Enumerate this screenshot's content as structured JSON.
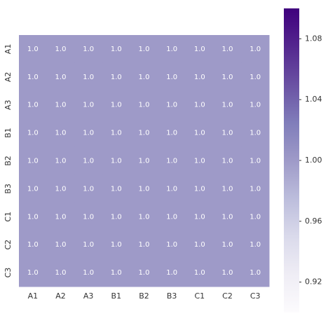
{
  "chart_data": {
    "type": "heatmap",
    "x": [
      "A1",
      "A2",
      "A3",
      "B1",
      "B2",
      "B3",
      "C1",
      "C2",
      "C3"
    ],
    "y": [
      "A1",
      "A2",
      "A3",
      "B1",
      "B2",
      "B3",
      "C1",
      "C2",
      "C3"
    ],
    "values": [
      [
        1.0,
        1.0,
        1.0,
        1.0,
        1.0,
        1.0,
        1.0,
        1.0,
        1.0
      ],
      [
        1.0,
        1.0,
        1.0,
        1.0,
        1.0,
        1.0,
        1.0,
        1.0,
        1.0
      ],
      [
        1.0,
        1.0,
        1.0,
        1.0,
        1.0,
        1.0,
        1.0,
        1.0,
        1.0
      ],
      [
        1.0,
        1.0,
        1.0,
        1.0,
        1.0,
        1.0,
        1.0,
        1.0,
        1.0
      ],
      [
        1.0,
        1.0,
        1.0,
        1.0,
        1.0,
        1.0,
        1.0,
        1.0,
        1.0
      ],
      [
        1.0,
        1.0,
        1.0,
        1.0,
        1.0,
        1.0,
        1.0,
        1.0,
        1.0
      ],
      [
        1.0,
        1.0,
        1.0,
        1.0,
        1.0,
        1.0,
        1.0,
        1.0,
        1.0
      ],
      [
        1.0,
        1.0,
        1.0,
        1.0,
        1.0,
        1.0,
        1.0,
        1.0,
        1.0
      ],
      [
        1.0,
        1.0,
        1.0,
        1.0,
        1.0,
        1.0,
        1.0,
        1.0,
        1.0
      ]
    ],
    "value_labels": [
      [
        "1.0",
        "1.0",
        "1.0",
        "1.0",
        "1.0",
        "1.0",
        "1.0",
        "1.0",
        "1.0"
      ],
      [
        "1.0",
        "1.0",
        "1.0",
        "1.0",
        "1.0",
        "1.0",
        "1.0",
        "1.0",
        "1.0"
      ],
      [
        "1.0",
        "1.0",
        "1.0",
        "1.0",
        "1.0",
        "1.0",
        "1.0",
        "1.0",
        "1.0"
      ],
      [
        "1.0",
        "1.0",
        "1.0",
        "1.0",
        "1.0",
        "1.0",
        "1.0",
        "1.0",
        "1.0"
      ],
      [
        "1.0",
        "1.0",
        "1.0",
        "1.0",
        "1.0",
        "1.0",
        "1.0",
        "1.0",
        "1.0"
      ],
      [
        "1.0",
        "1.0",
        "1.0",
        "1.0",
        "1.0",
        "1.0",
        "1.0",
        "1.0",
        "1.0"
      ],
      [
        "1.0",
        "1.0",
        "1.0",
        "1.0",
        "1.0",
        "1.0",
        "1.0",
        "1.0",
        "1.0"
      ],
      [
        "1.0",
        "1.0",
        "1.0",
        "1.0",
        "1.0",
        "1.0",
        "1.0",
        "1.0",
        "1.0"
      ],
      [
        "1.0",
        "1.0",
        "1.0",
        "1.0",
        "1.0",
        "1.0",
        "1.0",
        "1.0",
        "1.0"
      ]
    ],
    "colormap": [
      "#fcfbfd",
      "#efedf5",
      "#dadaeb",
      "#bcbddc",
      "#9e9ac8",
      "#807dba",
      "#6a51a3",
      "#54278f",
      "#3f007d"
    ],
    "clim": [
      0.9,
      1.1
    ],
    "cticks": [
      0.92,
      0.96,
      {
        "value": 1,
        "label": "1.00"
      },
      1.04,
      1.08
    ]
  }
}
